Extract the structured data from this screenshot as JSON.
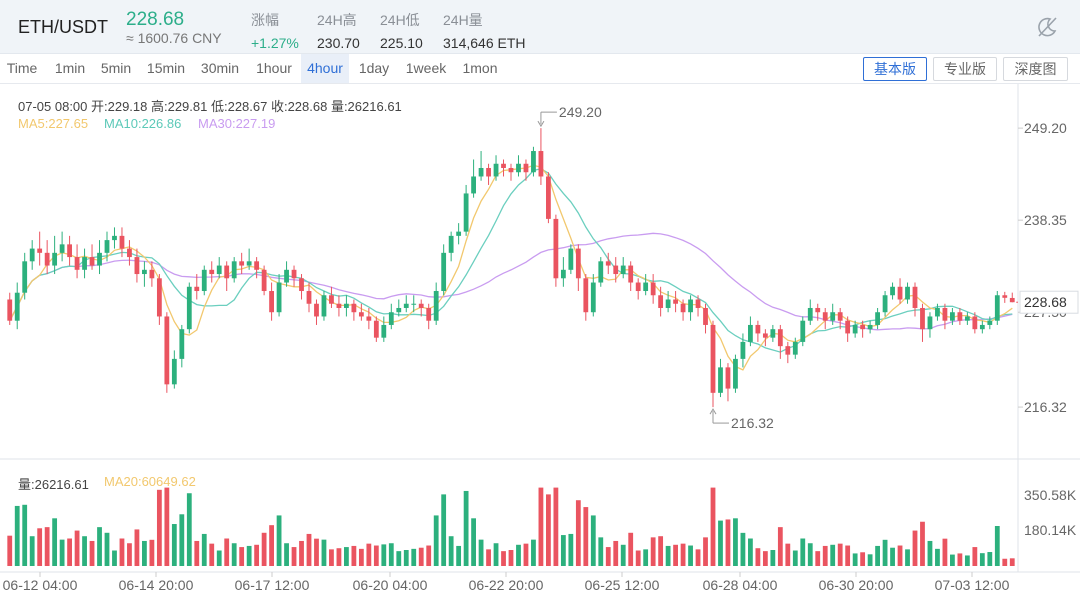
{
  "header": {
    "pair": "ETH/USDT",
    "price": "228.68",
    "cny": "≈ 1600.76 CNY",
    "stats": [
      {
        "label": "涨幅",
        "value": "+1.27%"
      },
      {
        "label": "24H高",
        "value": "230.70"
      },
      {
        "label": "24H低",
        "value": "225.10"
      },
      {
        "label": "24H量",
        "value": "314,646 ETH"
      }
    ]
  },
  "toolbar": {
    "timeframes": [
      "Time",
      "1min",
      "5min",
      "15min",
      "30min",
      "1hour",
      "4hour",
      "1day",
      "1week",
      "1mon"
    ],
    "active_timeframe": "4hour",
    "views": [
      "基本版",
      "专业版",
      "深度图"
    ],
    "active_view": "基本版"
  },
  "info": {
    "ohlc": "07-05 08:00  开:229.18  高:229.81  低:228.67  收:228.68  量:26216.61",
    "ma5": "MA5:227.65",
    "ma10": "MA10:226.86",
    "ma30": "MA30:227.19",
    "vol": "量:26216.61",
    "ma20": "MA20:60649.62"
  },
  "chart_data": {
    "type": "candlestick",
    "y_ticks": [
      249.2,
      238.35,
      227.5,
      216.32
    ],
    "ylim": [
      210.2,
      254.4
    ],
    "vol_ticks": [
      "350.58K",
      "180.14K"
    ],
    "vol_max": 420000,
    "x_ticks": [
      "06-12 04:00",
      "06-14 20:00",
      "06-17 12:00",
      "06-20 04:00",
      "06-22 20:00",
      "06-25 12:00",
      "06-28 04:00",
      "06-30 20:00",
      "07-03 12:00"
    ],
    "high_label": "249.20",
    "low_label": "216.32",
    "last_price": "228.68",
    "colors": {
      "up": "#2cb07d",
      "down": "#ea5460",
      "ma5": "#f2c86e",
      "ma10": "#6bcfbf",
      "ma30": "#c99cf0"
    },
    "ohlc": [
      [
        229.0,
        226.5,
        229.8,
        226.0
      ],
      [
        226.5,
        229.8,
        231.0,
        225.5
      ],
      [
        229.8,
        233.5,
        234.5,
        229.0
      ],
      [
        233.5,
        235.0,
        236.0,
        232.5
      ],
      [
        235.0,
        234.5,
        237.0,
        233.0
      ],
      [
        234.5,
        233.0,
        236.0,
        232.0
      ],
      [
        233.0,
        234.5,
        236.5,
        232.0
      ],
      [
        234.5,
        235.5,
        237.0,
        233.5
      ],
      [
        235.5,
        234.0,
        236.5,
        233.0
      ],
      [
        234.0,
        232.5,
        235.5,
        231.5
      ],
      [
        232.5,
        234.0,
        235.0,
        231.5
      ],
      [
        234.0,
        233.0,
        235.5,
        232.5
      ],
      [
        233.0,
        234.5,
        236.0,
        232.0
      ],
      [
        234.5,
        236.0,
        237.0,
        233.5
      ],
      [
        236.0,
        236.5,
        237.5,
        235.0
      ],
      [
        236.5,
        235.0,
        237.5,
        234.0
      ],
      [
        235.0,
        234.0,
        236.0,
        233.0
      ],
      [
        234.0,
        232.0,
        235.0,
        231.0
      ],
      [
        232.0,
        232.5,
        233.5,
        230.5
      ],
      [
        232.5,
        231.5,
        233.5,
        230.5
      ],
      [
        231.5,
        227.0,
        232.0,
        226.0
      ],
      [
        227.0,
        219.0,
        227.5,
        218.0
      ],
      [
        219.0,
        222.0,
        223.0,
        218.5
      ],
      [
        222.0,
        225.5,
        226.0,
        221.0
      ],
      [
        225.5,
        230.5,
        231.0,
        225.0
      ],
      [
        230.5,
        230.0,
        232.0,
        229.0
      ],
      [
        230.0,
        232.5,
        233.0,
        229.5
      ],
      [
        232.5,
        232.0,
        233.5,
        231.0
      ],
      [
        232.0,
        233.0,
        234.0,
        231.5
      ],
      [
        233.0,
        231.5,
        233.5,
        230.0
      ],
      [
        231.5,
        233.5,
        234.0,
        231.0
      ],
      [
        233.5,
        233.0,
        234.5,
        232.0
      ],
      [
        233.0,
        233.5,
        235.0,
        232.5
      ],
      [
        233.5,
        232.5,
        234.0,
        231.5
      ],
      [
        232.5,
        230.0,
        233.0,
        229.5
      ],
      [
        230.0,
        227.5,
        231.0,
        226.5
      ],
      [
        227.5,
        231.0,
        232.0,
        227.0
      ],
      [
        231.0,
        232.5,
        233.5,
        230.5
      ],
      [
        232.5,
        231.5,
        233.0,
        230.5
      ],
      [
        231.5,
        230.0,
        232.0,
        229.0
      ],
      [
        230.0,
        228.5,
        231.0,
        227.5
      ],
      [
        228.5,
        227.0,
        229.0,
        226.0
      ],
      [
        227.0,
        229.5,
        230.0,
        226.5
      ],
      [
        229.5,
        228.5,
        230.5,
        228.0
      ],
      [
        228.5,
        228.0,
        229.5,
        227.0
      ],
      [
        228.0,
        228.5,
        229.5,
        227.0
      ],
      [
        228.5,
        227.5,
        229.0,
        226.5
      ],
      [
        227.5,
        227.0,
        228.5,
        226.5
      ],
      [
        227.0,
        226.5,
        228.0,
        225.5
      ],
      [
        226.5,
        224.5,
        227.0,
        224.0
      ],
      [
        224.5,
        226.0,
        227.0,
        224.0
      ],
      [
        226.0,
        227.5,
        228.5,
        225.5
      ],
      [
        227.5,
        228.0,
        229.0,
        227.0
      ],
      [
        228.0,
        228.5,
        229.5,
        227.5
      ],
      [
        228.5,
        228.5,
        229.5,
        227.5
      ],
      [
        228.5,
        228.0,
        229.0,
        227.0
      ],
      [
        228.0,
        226.5,
        228.5,
        225.5
      ],
      [
        226.5,
        230.0,
        231.0,
        226.0
      ],
      [
        230.0,
        234.5,
        235.5,
        229.5
      ],
      [
        234.5,
        236.5,
        237.0,
        233.5
      ],
      [
        236.5,
        237.0,
        238.0,
        235.5
      ],
      [
        237.0,
        241.5,
        242.5,
        236.5
      ],
      [
        241.5,
        243.5,
        245.5,
        241.0
      ],
      [
        243.5,
        244.5,
        246.5,
        243.0
      ],
      [
        244.5,
        243.5,
        245.0,
        242.5
      ],
      [
        243.5,
        245.0,
        246.0,
        243.0
      ],
      [
        245.0,
        244.5,
        245.5,
        243.5
      ],
      [
        244.5,
        244.0,
        245.0,
        243.0
      ],
      [
        244.0,
        245.0,
        246.0,
        243.5
      ],
      [
        245.0,
        244.0,
        245.5,
        243.0
      ],
      [
        244.0,
        246.5,
        247.0,
        243.5
      ],
      [
        246.5,
        243.5,
        249.2,
        242.5
      ],
      [
        243.5,
        238.5,
        244.0,
        238.0
      ],
      [
        238.5,
        231.5,
        239.0,
        230.5
      ],
      [
        231.5,
        232.5,
        234.0,
        230.5
      ],
      [
        232.5,
        235.0,
        235.5,
        232.0
      ],
      [
        235.0,
        231.5,
        235.5,
        230.0
      ],
      [
        231.5,
        227.5,
        232.0,
        226.5
      ],
      [
        227.5,
        231.0,
        232.0,
        227.0
      ],
      [
        231.0,
        233.5,
        234.0,
        230.5
      ],
      [
        233.5,
        233.0,
        234.5,
        232.0
      ],
      [
        233.0,
        232.0,
        234.0,
        231.0
      ],
      [
        232.0,
        233.0,
        234.0,
        231.5
      ],
      [
        233.0,
        231.0,
        233.5,
        230.0
      ],
      [
        231.0,
        230.0,
        231.5,
        229.0
      ],
      [
        230.0,
        231.0,
        232.0,
        229.5
      ],
      [
        231.0,
        229.5,
        232.0,
        228.5
      ],
      [
        229.5,
        228.0,
        230.5,
        227.0
      ],
      [
        228.0,
        229.0,
        230.0,
        227.5
      ],
      [
        229.0,
        228.5,
        230.0,
        227.5
      ],
      [
        228.5,
        227.5,
        229.0,
        226.5
      ],
      [
        227.5,
        229.0,
        229.5,
        226.5
      ],
      [
        229.0,
        228.0,
        229.5,
        227.0
      ],
      [
        228.0,
        226.0,
        228.5,
        225.0
      ],
      [
        226.0,
        218.0,
        226.5,
        216.32
      ],
      [
        218.0,
        221.0,
        222.0,
        217.5
      ],
      [
        221.0,
        218.5,
        221.5,
        217.0
      ],
      [
        218.5,
        222.0,
        222.5,
        218.0
      ],
      [
        222.0,
        224.0,
        225.0,
        221.0
      ],
      [
        224.0,
        226.0,
        227.0,
        223.5
      ],
      [
        226.0,
        225.0,
        226.5,
        224.0
      ],
      [
        225.0,
        224.5,
        225.5,
        223.5
      ],
      [
        224.5,
        225.5,
        226.0,
        224.0
      ],
      [
        225.5,
        223.5,
        226.0,
        222.0
      ],
      [
        223.5,
        222.5,
        224.0,
        221.5
      ],
      [
        222.5,
        224.0,
        224.5,
        222.0
      ],
      [
        224.0,
        226.5,
        227.0,
        223.5
      ],
      [
        226.5,
        228.0,
        229.0,
        226.0
      ],
      [
        228.0,
        227.5,
        228.5,
        226.5
      ],
      [
        227.5,
        226.5,
        228.0,
        225.5
      ],
      [
        226.5,
        227.5,
        228.5,
        226.0
      ],
      [
        227.5,
        226.5,
        228.0,
        225.5
      ],
      [
        226.5,
        225.0,
        227.0,
        224.0
      ],
      [
        225.0,
        226.0,
        226.5,
        224.5
      ],
      [
        226.0,
        225.5,
        226.5,
        224.5
      ],
      [
        225.5,
        226.0,
        226.5,
        225.0
      ],
      [
        226.0,
        227.5,
        228.0,
        225.5
      ],
      [
        227.5,
        229.5,
        230.0,
        227.0
      ],
      [
        229.5,
        230.5,
        231.0,
        229.0
      ],
      [
        230.5,
        229.0,
        231.5,
        228.5
      ],
      [
        229.0,
        230.5,
        231.0,
        228.5
      ],
      [
        230.5,
        228.0,
        231.0,
        227.0
      ],
      [
        228.0,
        225.5,
        228.5,
        224.0
      ],
      [
        225.5,
        227.0,
        227.5,
        224.5
      ],
      [
        227.0,
        228.0,
        228.5,
        226.5
      ],
      [
        228.0,
        226.5,
        228.5,
        225.5
      ],
      [
        226.5,
        227.5,
        228.0,
        226.0
      ],
      [
        227.5,
        226.5,
        228.0,
        226.0
      ],
      [
        226.5,
        227.0,
        227.5,
        226.0
      ],
      [
        227.0,
        225.5,
        227.5,
        225.0
      ],
      [
        225.5,
        226.0,
        226.5,
        225.0
      ],
      [
        226.0,
        226.5,
        227.0,
        225.5
      ],
      [
        226.5,
        229.5,
        230.0,
        226.0
      ],
      [
        229.5,
        229.2,
        229.9,
        228.6
      ],
      [
        229.18,
        228.68,
        229.81,
        228.67
      ]
    ]
  }
}
